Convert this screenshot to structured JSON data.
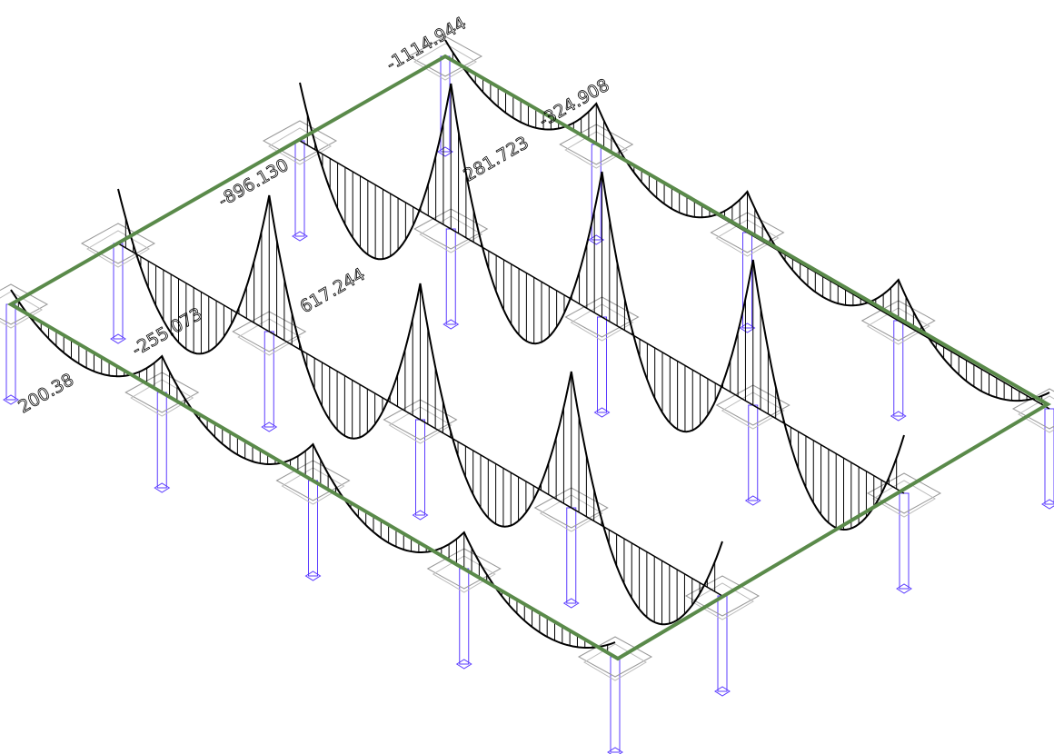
{
  "labels": [
    {
      "text": "-1114.944"
    },
    {
      "text": "-324.908"
    },
    {
      "text": "281.723"
    },
    {
      "text": "-896.130"
    },
    {
      "text": "617.244"
    },
    {
      "text": "-255.073"
    },
    {
      "text": "200.38"
    }
  ]
}
